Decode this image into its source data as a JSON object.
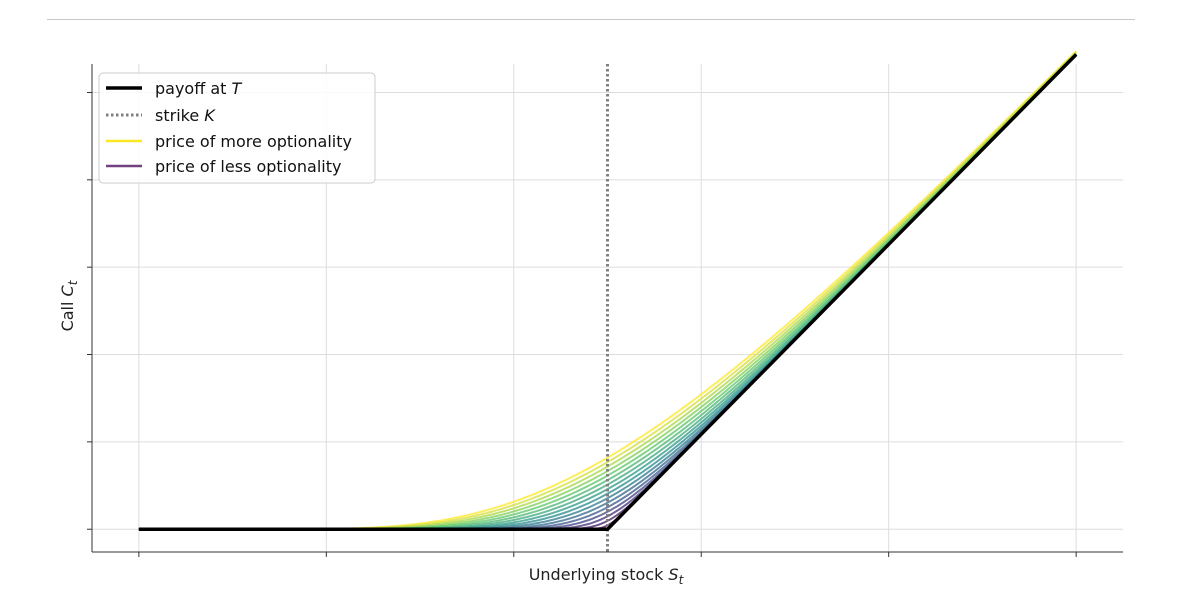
{
  "chart_data": {
    "type": "line",
    "title": "",
    "xlabel": {
      "text": "Underlying stock ",
      "symbol": "S",
      "subscript": "t"
    },
    "ylabel": {
      "text": "Call ",
      "symbol": "C",
      "subscript": "t"
    },
    "xlim": [
      -0.25,
      5.25
    ],
    "ylim": [
      -0.12,
      2.45
    ],
    "xticks": [
      0,
      1,
      2,
      3,
      4,
      5
    ],
    "yticks": [
      0,
      0.46,
      0.92,
      1.38,
      1.84,
      2.3
    ],
    "tick_labels_shown": false,
    "grid": true,
    "strike": 2.5,
    "x_max": 5.0,
    "sigma_sqrt_t_range": [
      0.02,
      0.38
    ],
    "num_price_curves": 16,
    "colormap": [
      "#440154",
      "#3b528b",
      "#21918c",
      "#5ec962",
      "#fde725"
    ],
    "series": [
      {
        "name": "payoff at ",
        "symbol": "T",
        "style": "solid",
        "color": "#000000"
      },
      {
        "name": "strike ",
        "symbol": "K",
        "style": "dotted",
        "color": "#808080"
      },
      {
        "name": "price of more optionality",
        "style": "solid",
        "color": "#fde725"
      },
      {
        "name": "price of less optionality",
        "style": "solid",
        "color": "#440154"
      }
    ],
    "legend_position": "upper-left"
  }
}
